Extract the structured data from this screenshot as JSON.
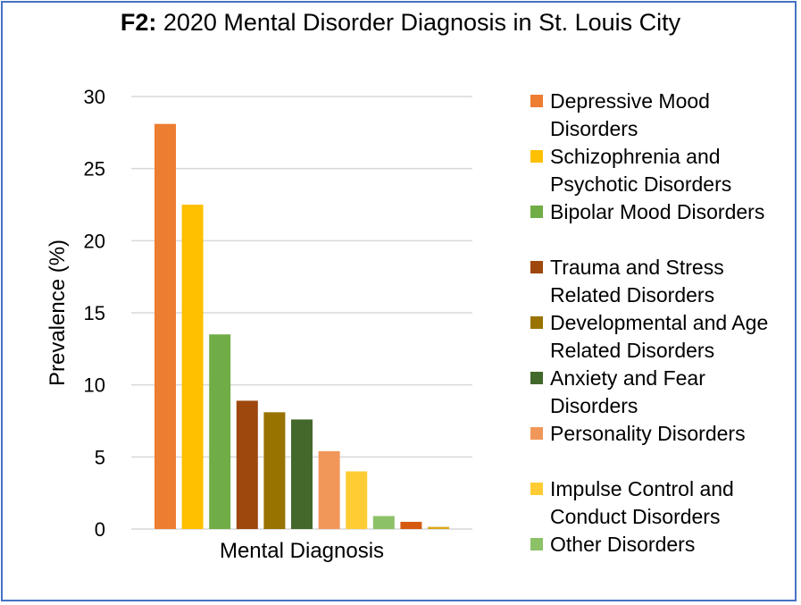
{
  "chart_data": {
    "type": "bar",
    "title_prefix": "F2:",
    "title": "2020 Mental Disorder Diagnosis in St. Louis City",
    "xlabel": "Mental Diagnosis",
    "ylabel": "Prevalence (%)",
    "ylim": [
      0,
      30
    ],
    "yticks": [
      "0",
      "5",
      "10",
      "15",
      "20",
      "25",
      "30"
    ],
    "grid": true,
    "legend_position": "right",
    "series": [
      {
        "name": "Depressive Mood Disorders",
        "value": 28.1,
        "color": "#ed7d31"
      },
      {
        "name": "Schizophrenia and Psychotic Disorders",
        "value": 22.5,
        "color": "#ffc000"
      },
      {
        "name": "Bipolar Mood Disorders",
        "value": 13.5,
        "color": "#70ad47"
      },
      {
        "name": "Trauma and Stress Related Disorders",
        "value": 8.9,
        "color": "#9e480e"
      },
      {
        "name": "Developmental and Age Related Disorders",
        "value": 8.1,
        "color": "#997300"
      },
      {
        "name": "Anxiety and Fear Disorders",
        "value": 7.6,
        "color": "#43682b"
      },
      {
        "name": "Personality Disorders",
        "value": 5.4,
        "color": "#f1975a"
      },
      {
        "name": "Impulse Control and Conduct Disorders",
        "value": 4.0,
        "color": "#ffcd33"
      },
      {
        "name": "Other Disorders",
        "value": 0.9,
        "color": "#8cc168"
      },
      {
        "name": "",
        "value": 0.5,
        "color": "#d55a10"
      },
      {
        "name": "",
        "value": 0.15,
        "color": "#dba61a"
      }
    ]
  }
}
